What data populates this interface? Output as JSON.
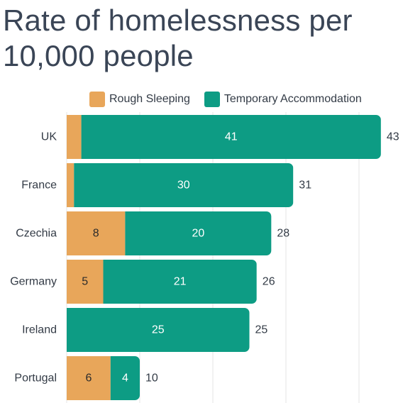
{
  "title": "Rate of homelessness per 10,000 people",
  "colors": {
    "rough": "#e8a65a",
    "temp": "#0d9c84",
    "grid": "#e6e6e6"
  },
  "chart_data": {
    "type": "bar",
    "orientation": "horizontal",
    "stacked": true,
    "categories": [
      "UK",
      "France",
      "Czechia",
      "Germany",
      "Ireland",
      "Portugal"
    ],
    "series": [
      {
        "name": "Rough Sleeping",
        "values": [
          2,
          1,
          8,
          5,
          0,
          6
        ],
        "labels": [
          "",
          "",
          "8",
          "5",
          "",
          "6"
        ]
      },
      {
        "name": "Temporary Accommodation",
        "values": [
          41,
          30,
          20,
          21,
          25,
          4
        ],
        "labels": [
          "41",
          "30",
          "20",
          "21",
          "25",
          "4"
        ]
      }
    ],
    "totals": [
      43,
      31,
      28,
      26,
      25,
      10
    ],
    "legend": "top",
    "grid": true,
    "xlim": [
      0,
      43
    ]
  }
}
